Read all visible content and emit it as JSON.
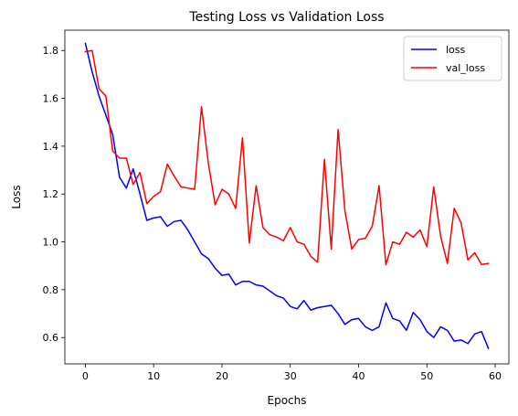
{
  "chart_data": {
    "type": "line",
    "title": "Testing Loss vs Validation Loss",
    "xlabel": "Epochs",
    "ylabel": "Loss",
    "xlim": [
      -3,
      62
    ],
    "ylim": [
      0.49,
      1.885
    ],
    "xticks": [
      0,
      10,
      20,
      30,
      40,
      50,
      60
    ],
    "yticks": [
      0.6,
      0.8,
      1.0,
      1.2,
      1.4,
      1.6,
      1.8
    ],
    "xtick_labels": [
      "0",
      "10",
      "20",
      "30",
      "40",
      "50",
      "60"
    ],
    "ytick_labels": [
      "0.6",
      "0.8",
      "1.0",
      "1.2",
      "1.4",
      "1.6",
      "1.8"
    ],
    "grid": false,
    "legend_position": "top-right",
    "x": [
      0,
      1,
      2,
      3,
      4,
      5,
      6,
      7,
      8,
      9,
      10,
      11,
      12,
      13,
      14,
      15,
      16,
      17,
      18,
      19,
      20,
      21,
      22,
      23,
      24,
      25,
      26,
      27,
      28,
      29,
      30,
      31,
      32,
      33,
      34,
      35,
      36,
      37,
      38,
      39,
      40,
      41,
      42,
      43,
      44,
      45,
      46,
      47,
      48,
      49,
      50,
      51,
      52,
      53,
      54,
      55,
      56,
      57,
      58,
      59
    ],
    "series": [
      {
        "name": "loss",
        "color": "#0000ff",
        "values": [
          1.83,
          1.71,
          1.61,
          1.53,
          1.45,
          1.27,
          1.225,
          1.305,
          1.2,
          1.09,
          1.1,
          1.105,
          1.065,
          1.085,
          1.09,
          1.05,
          1.0,
          0.95,
          0.93,
          0.89,
          0.86,
          0.865,
          0.82,
          0.835,
          0.835,
          0.82,
          0.815,
          0.795,
          0.775,
          0.765,
          0.73,
          0.72,
          0.755,
          0.715,
          0.725,
          0.73,
          0.735,
          0.7,
          0.655,
          0.675,
          0.68,
          0.645,
          0.63,
          0.645,
          0.745,
          0.68,
          0.67,
          0.63,
          0.705,
          0.675,
          0.625,
          0.6,
          0.645,
          0.63,
          0.585,
          0.59,
          0.575,
          0.615,
          0.625,
          0.555
        ]
      },
      {
        "name": "val_loss",
        "color": "#ff0000",
        "values": [
          1.795,
          1.8,
          1.64,
          1.61,
          1.38,
          1.35,
          1.35,
          1.24,
          1.29,
          1.16,
          1.19,
          1.21,
          1.325,
          1.275,
          1.23,
          1.225,
          1.22,
          1.565,
          1.33,
          1.155,
          1.22,
          1.2,
          1.14,
          1.435,
          0.995,
          1.235,
          1.06,
          1.03,
          1.02,
          1.005,
          1.06,
          1.0,
          0.99,
          0.94,
          0.915,
          1.345,
          0.97,
          1.47,
          1.13,
          0.97,
          1.01,
          1.015,
          1.065,
          1.235,
          0.905,
          1.0,
          0.99,
          1.04,
          1.02,
          1.05,
          0.98,
          1.23,
          1.025,
          0.91,
          1.14,
          1.08,
          0.925,
          0.955,
          0.905,
          0.91
        ]
      }
    ]
  }
}
